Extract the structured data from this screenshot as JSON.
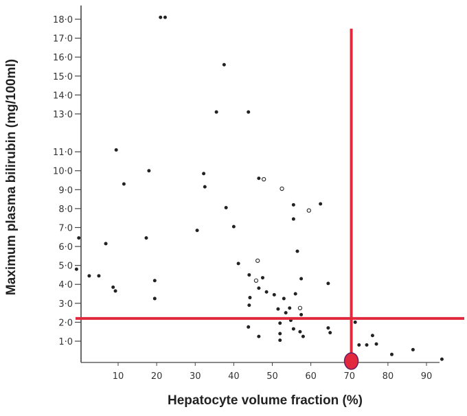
{
  "chart_data": {
    "type": "scatter",
    "xlabel": "Hepatocyte volume fraction (%)",
    "ylabel": "Maximum plasma bilirubin (mg/100ml)",
    "xlim": [
      0,
      97
    ],
    "ylim": [
      0,
      18.8
    ],
    "x_ticks": [
      "10",
      "20",
      "30",
      "40",
      "50",
      "60",
      "70",
      "80",
      "90"
    ],
    "y_ticks": [
      "1·0",
      "2·0",
      "3·0",
      "4·0",
      "5·0",
      "6·0",
      "7·0",
      "8·0",
      "9·0",
      "10·0",
      "11·0",
      "13·0",
      "14·0",
      "15·0",
      "16·0",
      "17·0",
      "18·0"
    ],
    "series": [
      {
        "marker": "filled",
        "color": "#222222",
        "points": [
          [
            21,
            18.1
          ],
          [
            22.2,
            18.1
          ],
          [
            37.5,
            15.6
          ],
          [
            35.5,
            13.1
          ],
          [
            43.8,
            13.1
          ],
          [
            9.5,
            11.1
          ],
          [
            18,
            10.0
          ],
          [
            32.2,
            9.85
          ],
          [
            11.5,
            9.3
          ],
          [
            32.5,
            9.15
          ],
          [
            46.5,
            9.6
          ],
          [
            38,
            8.05
          ],
          [
            55.5,
            8.2
          ],
          [
            62.5,
            8.25
          ],
          [
            55.5,
            7.45
          ],
          [
            40,
            7.05
          ],
          [
            30.5,
            6.85
          ],
          [
            -0.2,
            6.45
          ],
          [
            6.8,
            6.15
          ],
          [
            17.3,
            6.45
          ],
          [
            56.5,
            5.75
          ],
          [
            41.2,
            5.1
          ],
          [
            -0.8,
            4.8
          ],
          [
            2.5,
            4.45
          ],
          [
            5,
            4.45
          ],
          [
            19.5,
            4.2
          ],
          [
            44,
            4.5
          ],
          [
            47.5,
            4.35
          ],
          [
            57.5,
            4.3
          ],
          [
            64.5,
            4.05
          ],
          [
            8.7,
            3.85
          ],
          [
            9.3,
            3.65
          ],
          [
            46.5,
            3.8
          ],
          [
            48.5,
            3.6
          ],
          [
            50.5,
            3.45
          ],
          [
            56,
            3.5
          ],
          [
            44.2,
            3.3
          ],
          [
            53,
            3.25
          ],
          [
            44,
            2.9
          ],
          [
            51.5,
            2.7
          ],
          [
            54.5,
            2.75
          ],
          [
            53.5,
            2.5
          ],
          [
            57.5,
            2.4
          ],
          [
            54.8,
            2.1
          ],
          [
            52,
            1.95
          ],
          [
            43.8,
            1.75
          ],
          [
            55.5,
            1.65
          ],
          [
            57.2,
            1.5
          ],
          [
            52,
            1.4
          ],
          [
            65,
            1.45
          ],
          [
            64.5,
            1.7
          ],
          [
            46.5,
            1.25
          ],
          [
            52,
            1.05
          ],
          [
            58,
            1.25
          ],
          [
            71.5,
            2.0
          ],
          [
            72.5,
            0.8
          ],
          [
            74.5,
            0.8
          ],
          [
            76,
            1.3
          ],
          [
            77,
            0.85
          ],
          [
            86.5,
            0.55
          ],
          [
            81,
            0.3
          ],
          [
            94,
            0.05
          ],
          [
            19.5,
            3.25
          ]
        ]
      },
      {
        "marker": "open",
        "color": "#222222",
        "points": [
          [
            47.8,
            9.55
          ],
          [
            52.5,
            9.05
          ],
          [
            59.5,
            7.9
          ],
          [
            46.2,
            5.25
          ],
          [
            45.8,
            4.2
          ],
          [
            57.2,
            2.75
          ]
        ]
      }
    ],
    "reference_lines": {
      "vertical_x": 70.5,
      "vertical_y_top": 17.5,
      "horizontal_y": 2.2,
      "color": "#e1283c",
      "marker_point": [
        70.5,
        -1.0
      ]
    }
  }
}
